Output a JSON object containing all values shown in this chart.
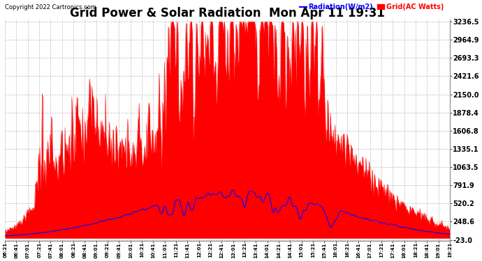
{
  "title": "Grid Power & Solar Radiation  Mon Apr 11 19:31",
  "copyright": "Copyright 2022 Cartronics.com",
  "legend_radiation": "Radiation(W/m2)",
  "legend_grid": "Grid(AC Watts)",
  "yticks": [
    3236.5,
    2964.9,
    2693.3,
    2421.6,
    2150.0,
    1878.4,
    1606.8,
    1335.1,
    1063.5,
    791.9,
    520.2,
    248.6,
    -23.0
  ],
  "ymin": -23.0,
  "ymax": 3236.5,
  "bg_color": "#ffffff",
  "plot_bg_color": "#ffffff",
  "grid_color": "#aaaaaa",
  "title_fontsize": 12,
  "radiation_color": "#0000ff",
  "grid_ac_color": "#ff0000",
  "xtick_labels": [
    "06:21",
    "06:41",
    "07:01",
    "07:21",
    "07:41",
    "08:01",
    "08:21",
    "08:41",
    "09:01",
    "09:21",
    "09:41",
    "10:01",
    "10:21",
    "10:41",
    "11:01",
    "11:21",
    "11:41",
    "12:01",
    "12:21",
    "12:41",
    "13:01",
    "13:21",
    "13:41",
    "14:01",
    "14:21",
    "14:41",
    "15:01",
    "15:21",
    "15:41",
    "16:01",
    "16:21",
    "16:41",
    "17:01",
    "17:21",
    "17:41",
    "18:01",
    "18:21",
    "18:41",
    "19:01",
    "19:21"
  ],
  "n_points": 780
}
